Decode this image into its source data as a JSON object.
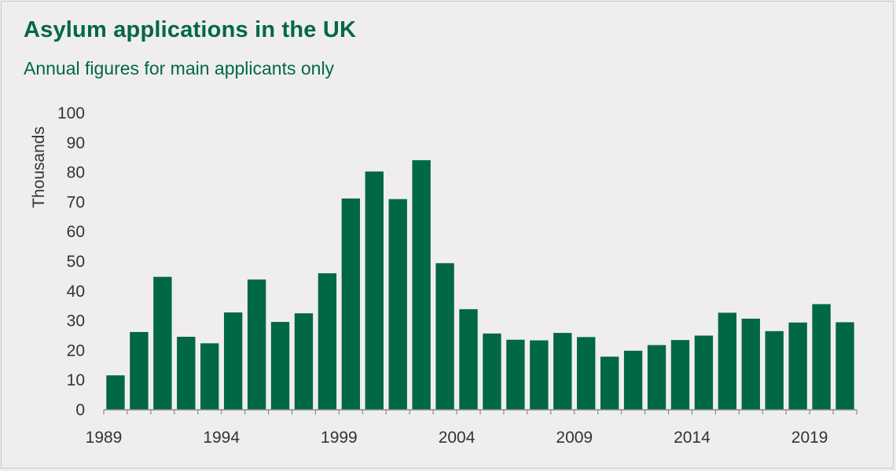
{
  "title": "Asylum applications in the UK",
  "subtitle": "Annual figures for main applicants only",
  "colors": {
    "bar": "#006747",
    "background": "#efeeed",
    "text": "#333333",
    "title": "#006747"
  },
  "chart_data": {
    "type": "bar",
    "title": "Asylum applications in the UK",
    "subtitle": "Annual figures for main applicants only",
    "xlabel": "",
    "ylabel": "Thousands",
    "ylim": [
      0,
      100
    ],
    "yticks": [
      0,
      10,
      20,
      30,
      40,
      50,
      60,
      70,
      80,
      90,
      100
    ],
    "xtick_labels": [
      "1989",
      "1994",
      "1999",
      "2004",
      "2009",
      "2014",
      "2019"
    ],
    "grid": false,
    "categories": [
      1989,
      1990,
      1991,
      1992,
      1993,
      1994,
      1995,
      1996,
      1997,
      1998,
      1999,
      2000,
      2001,
      2002,
      2003,
      2004,
      2005,
      2006,
      2007,
      2008,
      2009,
      2010,
      2011,
      2012,
      2013,
      2014,
      2015,
      2016,
      2017,
      2018,
      2019,
      2020
    ],
    "values": [
      11.6,
      26.2,
      44.8,
      24.6,
      22.4,
      32.8,
      43.9,
      29.6,
      32.5,
      46.0,
      71.2,
      80.3,
      71.0,
      84.1,
      49.4,
      33.9,
      25.7,
      23.6,
      23.4,
      25.9,
      24.5,
      17.9,
      19.9,
      21.8,
      23.5,
      25.0,
      32.7,
      30.7,
      26.5,
      29.4,
      35.6,
      29.5
    ]
  }
}
